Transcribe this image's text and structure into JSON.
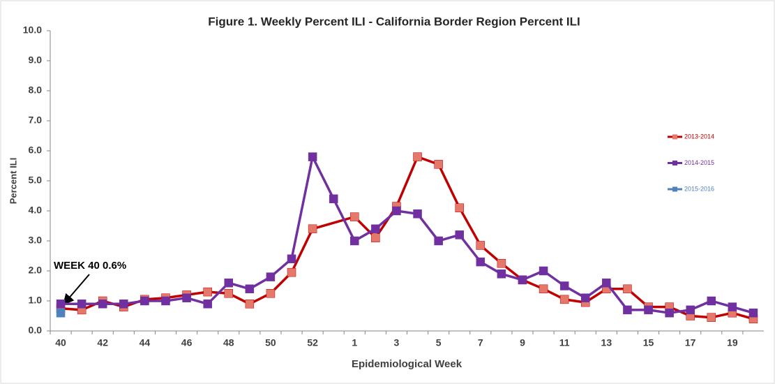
{
  "chart_data": {
    "type": "line",
    "title": "Figure 1. Weekly Percent ILI - California Border Region Percent ILI",
    "x_label": "Epidemiological Week",
    "y_label": "Percent ILI",
    "categories": [
      "40",
      null,
      "42",
      null,
      "44",
      null,
      "46",
      null,
      "48",
      null,
      "50",
      null,
      "52",
      null,
      "1",
      null,
      "3",
      null,
      "5",
      null,
      "7",
      null,
      "9",
      null,
      "11",
      null,
      "13",
      null,
      "15",
      null,
      "17",
      null,
      "19",
      null
    ],
    "ylim": [
      0,
      10
    ],
    "yticks": [
      {
        "value": 0,
        "label": "0.0"
      },
      {
        "value": 1,
        "label": "1.0"
      },
      {
        "value": 2,
        "label": "2.0"
      },
      {
        "value": 3,
        "label": "3.0"
      },
      {
        "value": 4,
        "label": "4.0"
      },
      {
        "value": 5,
        "label": "5.0"
      },
      {
        "value": 6,
        "label": "6.0"
      },
      {
        "value": 7,
        "label": "7.0"
      },
      {
        "value": 8,
        "label": "8.0"
      },
      {
        "value": 9,
        "label": "9.0"
      },
      {
        "value": 10,
        "label": "10.0"
      }
    ],
    "span_gaps": true,
    "legend": "right",
    "series": [
      {
        "name": "2013-2014",
        "color": "#c00000",
        "marker_color": "#e4786a",
        "values": [
          0.75,
          0.7,
          1.0,
          0.8,
          1.05,
          1.1,
          1.2,
          1.3,
          1.25,
          0.9,
          1.25,
          1.95,
          3.4,
          null,
          3.8,
          3.1,
          4.15,
          5.8,
          5.55,
          4.1,
          2.85,
          2.25,
          1.7,
          1.4,
          1.05,
          0.95,
          1.4,
          1.4,
          0.8,
          0.8,
          0.5,
          0.45,
          0.6,
          0.4
        ]
      },
      {
        "name": "2014-2015",
        "color": "#7030a0",
        "marker_color": "#7030a0",
        "values": [
          0.9,
          0.9,
          0.9,
          0.9,
          1.0,
          1.0,
          1.1,
          0.9,
          1.6,
          1.4,
          1.8,
          2.4,
          5.8,
          4.4,
          3.0,
          3.4,
          4.0,
          3.9,
          3.0,
          3.2,
          2.3,
          1.9,
          1.7,
          2.0,
          1.5,
          1.1,
          1.6,
          0.7,
          0.7,
          0.6,
          0.7,
          1.0,
          0.8,
          0.6
        ]
      },
      {
        "name": "2015-2016",
        "color": "#4f81bd",
        "marker_color": "#4f81bd",
        "values": [
          0.6,
          null,
          null,
          null,
          null,
          null,
          null,
          null,
          null,
          null,
          null,
          null,
          null,
          null,
          null,
          null,
          null,
          null,
          null,
          null,
          null,
          null,
          null,
          null,
          null,
          null,
          null,
          null,
          null,
          null,
          null,
          null,
          null,
          null
        ]
      }
    ],
    "annotation": "WEEK 40 0.6%"
  }
}
